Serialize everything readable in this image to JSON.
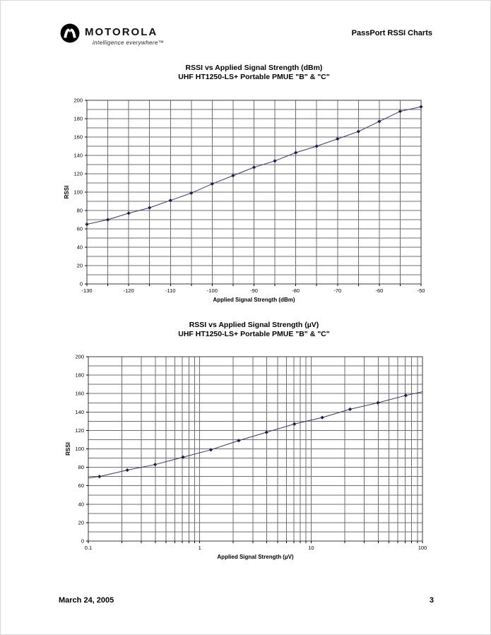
{
  "header": {
    "brand": "MOTOROLA",
    "tagline": "intelligence everywhere™",
    "doc_title": "PassPort RSSI Charts"
  },
  "footer": {
    "date": "March 24, 2005",
    "page_number": "3"
  },
  "chart_data": [
    {
      "type": "line",
      "title": "RSSI vs Applied Signal Strength (dBm)",
      "subtitle": "UHF HT1250-LS+ Portable PMUE \"B\" & \"C\"",
      "xlabel": "Applied Signal Strength (dBm)",
      "ylabel": "RSSI",
      "x_scale": "linear",
      "xlim": [
        -130,
        -50
      ],
      "ylim": [
        0,
        200
      ],
      "x_grid_step": 5,
      "y_grid_step": 10,
      "grid": "on",
      "legend": "none",
      "x_tick_values": [
        -130,
        -120,
        -110,
        -100,
        -90,
        -80,
        -70,
        -60,
        -50
      ],
      "x_tick_labels": [
        "-130",
        "-120",
        "-110",
        "-100",
        "-90",
        "-80",
        "-70",
        "-60",
        "-50"
      ],
      "y_tick_values": [
        0,
        20,
        40,
        60,
        80,
        100,
        120,
        140,
        160,
        180,
        200
      ],
      "y_tick_labels": [
        "0",
        "20",
        "40",
        "60",
        "80",
        "100",
        "120",
        "140",
        "160",
        "180",
        "200"
      ],
      "line": {
        "x": [
          -130,
          -125,
          -120,
          -115,
          -110,
          -105,
          -100,
          -95,
          -90,
          -85,
          -80,
          -75,
          -70,
          -65,
          -60,
          -55,
          -50
        ],
        "y": [
          65,
          70,
          77,
          83,
          91,
          99,
          109,
          118,
          127,
          134,
          143,
          150,
          158,
          166,
          177,
          188,
          193
        ]
      },
      "markers": {
        "x": [
          -130,
          -125,
          -120,
          -115,
          -110,
          -105,
          -100,
          -95,
          -90,
          -85,
          -80,
          -75,
          -70,
          -65,
          -60,
          -55,
          -50
        ],
        "y": [
          65,
          70,
          77,
          83,
          91,
          99,
          109,
          118,
          127,
          134,
          143,
          150,
          158,
          166,
          177,
          188,
          193
        ]
      },
      "line_color": "#35357a",
      "marker_color": "#1a1a5e",
      "grid_color": "#6e6e6e"
    },
    {
      "type": "line",
      "title": "RSSI vs Applied Signal Strength (µV)",
      "subtitle": "UHF HT1250-LS+ Portable PMUE \"B\" & \"C\"",
      "xlabel": "Applied Signal Strength (µV)",
      "ylabel": "RSSI",
      "x_scale": "log",
      "xlim": [
        0.1,
        100
      ],
      "ylim": [
        0,
        200
      ],
      "y_grid_step": 10,
      "grid": "on",
      "legend": "none",
      "x_tick_values": [
        0.1,
        1,
        10,
        100
      ],
      "x_tick_labels": [
        "0.1",
        "1",
        "10",
        "100"
      ],
      "y_tick_values": [
        0,
        20,
        40,
        60,
        80,
        100,
        120,
        140,
        160,
        180,
        200
      ],
      "y_tick_labels": [
        "0",
        "20",
        "40",
        "60",
        "80",
        "100",
        "120",
        "140",
        "160",
        "180",
        "200"
      ],
      "line": {
        "x": [
          0.1,
          0.126,
          0.224,
          0.398,
          0.708,
          1.26,
          2.24,
          3.98,
          7.08,
          12.6,
          22.4,
          39.8,
          70.8,
          100
        ],
        "y": [
          68.5,
          70,
          77,
          83,
          91,
          99,
          109,
          118,
          127,
          134,
          143,
          150,
          158,
          162
        ]
      },
      "markers": {
        "x": [
          0.126,
          0.224,
          0.398,
          0.708,
          1.26,
          2.24,
          3.98,
          7.08,
          12.6,
          22.4,
          39.8,
          70.8
        ],
        "y": [
          70,
          77,
          83,
          91,
          99,
          109,
          118,
          127,
          134,
          143,
          150,
          158
        ]
      },
      "line_color": "#35357a",
      "marker_color": "#1a1a5e",
      "grid_color": "#6e6e6e"
    }
  ]
}
